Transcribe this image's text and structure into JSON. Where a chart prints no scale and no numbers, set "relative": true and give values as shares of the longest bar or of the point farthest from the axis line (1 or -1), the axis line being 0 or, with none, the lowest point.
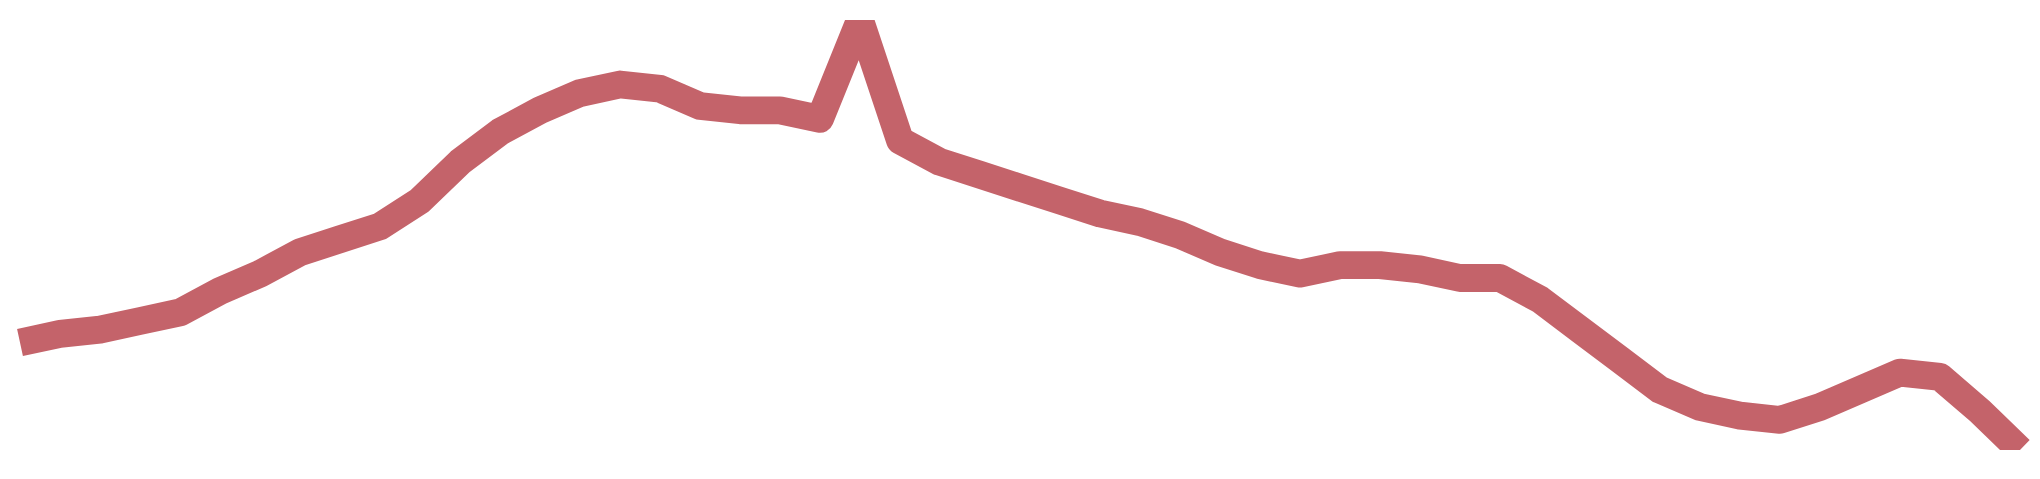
{
  "chart_data": {
    "type": "line",
    "relative": true,
    "grid": false,
    "categories": [
      null,
      null,
      null,
      null,
      null,
      null,
      null,
      null,
      null,
      null,
      null,
      null,
      null,
      null,
      null,
      null,
      null,
      null,
      null,
      null,
      null,
      null,
      null,
      null,
      null,
      null,
      null,
      null,
      null,
      null,
      null,
      null,
      null,
      null,
      null,
      null,
      null,
      null,
      null,
      null,
      null,
      null,
      null,
      null,
      null,
      null,
      null,
      null,
      null,
      null,
      null
    ],
    "series": [
      {
        "color": "#c4636a",
        "values": [
          0.25,
          0.27,
          0.28,
          0.3,
          0.32,
          0.37,
          0.41,
          0.46,
          0.49,
          0.52,
          0.58,
          0.67,
          0.74,
          0.79,
          0.83,
          0.85,
          0.84,
          0.8,
          0.79,
          0.79,
          0.77,
          1,
          0.72,
          0.67,
          0.64,
          0.61,
          0.58,
          0.55,
          0.53,
          0.5,
          0.46,
          0.43,
          0.41,
          0.43,
          0.43,
          0.42,
          0.4,
          0.4,
          0.35,
          0.28,
          0.21,
          0.14,
          0.1,
          0.08,
          0.07,
          0.1,
          0.14,
          0.18,
          0.17,
          0.09,
          0
        ]
      }
    ]
  }
}
